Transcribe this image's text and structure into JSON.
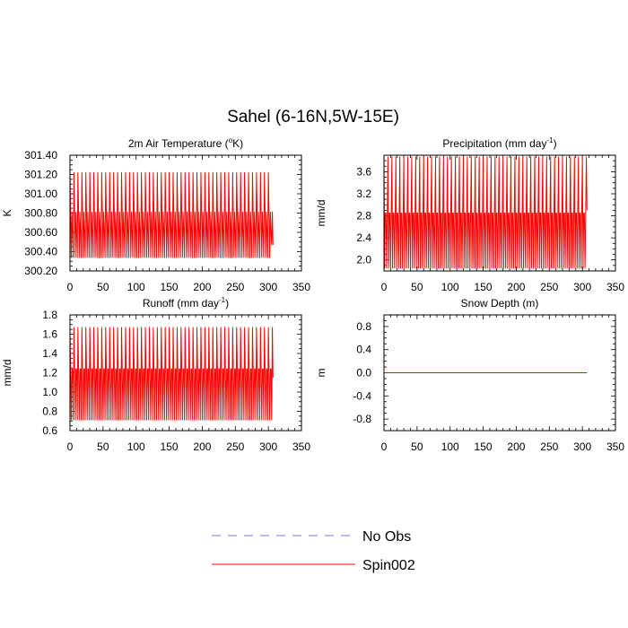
{
  "figure": {
    "title": "Sahel (6-16N,5W-15E)"
  },
  "legend": {
    "items": [
      {
        "label": "No Obs",
        "color": "#7777ee",
        "style": "dashed"
      },
      {
        "label": "Spin002",
        "color": "#ff0000",
        "style": "solid"
      }
    ]
  },
  "chart_data": [
    {
      "type": "line",
      "title_main": "2m Air Temperature (",
      "title_sup": "o",
      "title_tail": "K)",
      "ylabel": "K",
      "xlim": [
        0,
        350
      ],
      "ylim": [
        300.2,
        301.4
      ],
      "xticks": [
        0,
        50,
        100,
        150,
        200,
        250,
        300,
        350
      ],
      "yticks": [
        300.2,
        300.4,
        300.6,
        300.8,
        301.0,
        301.2,
        301.4
      ],
      "ytick_labels": [
        "300.20",
        "300.40",
        "300.60",
        "300.80",
        "301.00",
        "301.20",
        "301.40"
      ],
      "series": [
        {
          "color": "#ff0000",
          "x_range": [
            0,
            307
          ],
          "period": 6,
          "cycle": [
            301.22,
            300.81,
            300.34,
            300.81,
            300.6,
            300.34
          ],
          "end_values": [
            300.47,
            300.81,
            300.47
          ]
        }
      ]
    },
    {
      "type": "line",
      "title_main": "Precipitation (mm day",
      "title_sup": "-1",
      "title_tail": ")",
      "ylabel": "mm/d",
      "xlim": [
        0,
        350
      ],
      "ylim": [
        1.8,
        3.9
      ],
      "xticks": [
        0,
        50,
        100,
        150,
        200,
        250,
        300,
        350
      ],
      "yticks": [
        2.0,
        2.4,
        2.8,
        3.2,
        3.6
      ],
      "ytick_labels": [
        "2.0",
        "2.4",
        "2.8",
        "3.2",
        "3.6"
      ],
      "series": [
        {
          "color": "#ff0000",
          "x_range": [
            0,
            307
          ],
          "period": 6,
          "cycle": [
            3.87,
            1.85,
            2.85,
            2.85,
            1.85,
            2.85
          ],
          "end_values": [
            2.9
          ]
        }
      ]
    },
    {
      "type": "line",
      "title_main": "Runoff (mm day",
      "title_sup": "-1",
      "title_tail": ")",
      "ylabel": "mm/d",
      "xlim": [
        0,
        350
      ],
      "ylim": [
        0.6,
        1.8
      ],
      "xticks": [
        0,
        50,
        100,
        150,
        200,
        250,
        300,
        350
      ],
      "yticks": [
        0.6,
        0.8,
        1.0,
        1.2,
        1.4,
        1.6,
        1.8
      ],
      "ytick_labels": [
        "0.6",
        "0.8",
        "1.0",
        "1.2",
        "1.4",
        "1.6",
        "1.8"
      ],
      "series": [
        {
          "color": "#ff0000",
          "x_range": [
            0,
            307
          ],
          "period": 6,
          "cycle": [
            1.67,
            1.24,
            0.71,
            1.24,
            1.24,
            0.71
          ],
          "end_values": [
            1.15
          ]
        }
      ]
    },
    {
      "type": "line",
      "title_main": "Snow Depth (m)",
      "title_sup": "",
      "title_tail": "",
      "ylabel": "m",
      "xlim": [
        0,
        350
      ],
      "ylim": [
        -1.0,
        1.0
      ],
      "xticks": [
        0,
        50,
        100,
        150,
        200,
        250,
        300,
        350
      ],
      "yticks": [
        -0.8,
        -0.4,
        0.0,
        0.4,
        0.8
      ],
      "ytick_labels": [
        "-0.8",
        "-0.4",
        "0.0",
        "0.4",
        "0.8"
      ],
      "series": [
        {
          "color": "#ff0000",
          "x_range": [
            0,
            307
          ],
          "constant": 0.0
        }
      ]
    }
  ]
}
